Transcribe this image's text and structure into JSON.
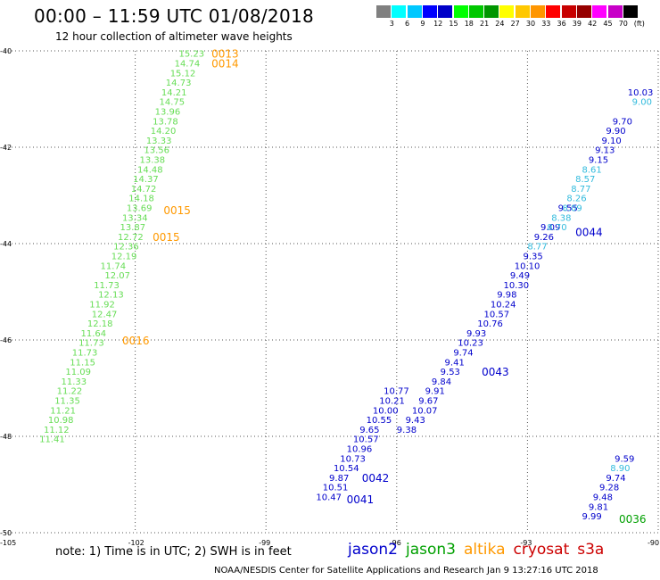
{
  "title": "00:00 – 11:59 UTC 01/08/2018",
  "subtitle": "12 hour collection of altimeter wave heights",
  "legend": {
    "unit": "(ft)",
    "ticks": [
      "3",
      "6",
      "9",
      "12",
      "15",
      "18",
      "21",
      "24",
      "27",
      "30",
      "33",
      "36",
      "39",
      "42",
      "45",
      "70"
    ],
    "colors": [
      "#808080",
      "#00ffff",
      "#00c8ff",
      "#0000ff",
      "#0000c8",
      "#00ff00",
      "#00c800",
      "#009600",
      "#ffff00",
      "#ffc800",
      "#ff9600",
      "#ff0000",
      "#c80000",
      "#960000",
      "#ff00ff",
      "#c800c8",
      "#000000"
    ]
  },
  "note": "note:  1) Time is in UTC;  2) SWH is in feet",
  "satellites": [
    {
      "name": "jason2",
      "color": "#0000cc"
    },
    {
      "name": "jason3",
      "color": "#00a000"
    },
    {
      "name": "altika",
      "color": "#ff9900"
    },
    {
      "name": "cryosat",
      "color": "#cc0000"
    },
    {
      "name": "s3a",
      "color": "#cc0000"
    }
  ],
  "credit": "NOAA/NESDIS Center for Satellite Applications and Research    Jan  9 13:27:16 UTC 2018",
  "chart_data": {
    "type": "scatter",
    "xlim": [
      -105,
      -90
    ],
    "ylim": [
      -50,
      -40
    ],
    "x_ticks": [
      -105,
      -102,
      -99,
      -96,
      -93,
      -90
    ],
    "y_ticks": [
      -40,
      -42,
      -44,
      -46,
      -48,
      -50
    ],
    "grid": true,
    "tracks": [
      {
        "satellite": "jason3",
        "color": "#66dd55",
        "points": [
          {
            "lon": -101.0,
            "lat": -40.05,
            "label": "15.23"
          },
          {
            "lon": -101.1,
            "lat": -40.25,
            "label": "14.74"
          },
          {
            "lon": -101.2,
            "lat": -40.45,
            "label": "15.12"
          },
          {
            "lon": -101.3,
            "lat": -40.65,
            "label": "14.73"
          },
          {
            "lon": -101.4,
            "lat": -40.85,
            "label": "14.21"
          },
          {
            "lon": -101.45,
            "lat": -41.05,
            "label": "14.75"
          },
          {
            "lon": -101.55,
            "lat": -41.25,
            "label": "13.96"
          },
          {
            "lon": -101.6,
            "lat": -41.45,
            "label": "13.78"
          },
          {
            "lon": -101.65,
            "lat": -41.65,
            "label": "14.20"
          },
          {
            "lon": -101.75,
            "lat": -41.85,
            "label": "13.33"
          },
          {
            "lon": -101.8,
            "lat": -42.05,
            "label": "13.56"
          },
          {
            "lon": -101.9,
            "lat": -42.25,
            "label": "13.38"
          },
          {
            "lon": -101.95,
            "lat": -42.45,
            "label": "14.48"
          },
          {
            "lon": -102.05,
            "lat": -42.65,
            "label": "14.37"
          },
          {
            "lon": -102.1,
            "lat": -42.85,
            "label": "14.72"
          },
          {
            "lon": -102.15,
            "lat": -43.05,
            "label": "14.18"
          },
          {
            "lon": -102.2,
            "lat": -43.25,
            "label": "13.69"
          },
          {
            "lon": -102.3,
            "lat": -43.45,
            "label": "13.34"
          },
          {
            "lon": -102.35,
            "lat": -43.65,
            "label": "13.87"
          },
          {
            "lon": -102.4,
            "lat": -43.85,
            "label": "12.72"
          },
          {
            "lon": -102.5,
            "lat": -44.05,
            "label": "12.36"
          },
          {
            "lon": -102.55,
            "lat": -44.25,
            "label": "12.19"
          },
          {
            "lon": -102.8,
            "lat": -44.45,
            "label": "11.74"
          },
          {
            "lon": -102.7,
            "lat": -44.65,
            "label": "12.07"
          },
          {
            "lon": -102.95,
            "lat": -44.85,
            "label": "11.73"
          },
          {
            "lon": -102.85,
            "lat": -45.05,
            "label": "12.13"
          },
          {
            "lon": -103.05,
            "lat": -45.25,
            "label": "11.92"
          },
          {
            "lon": -103.0,
            "lat": -45.45,
            "label": "12.47"
          },
          {
            "lon": -103.1,
            "lat": -45.65,
            "label": "12.18"
          },
          {
            "lon": -103.25,
            "lat": -45.85,
            "label": "11.64"
          },
          {
            "lon": -103.3,
            "lat": -46.05,
            "label": "11.73"
          },
          {
            "lon": -103.45,
            "lat": -46.25,
            "label": "11.73"
          },
          {
            "lon": -103.5,
            "lat": -46.45,
            "label": "11.15"
          },
          {
            "lon": -103.6,
            "lat": -46.65,
            "label": "11.09"
          },
          {
            "lon": -103.7,
            "lat": -46.85,
            "label": "11.33"
          },
          {
            "lon": -103.8,
            "lat": -47.05,
            "label": "11.22"
          },
          {
            "lon": -103.85,
            "lat": -47.25,
            "label": "11.35"
          },
          {
            "lon": -103.95,
            "lat": -47.45,
            "label": "11.21"
          },
          {
            "lon": -104.0,
            "lat": -47.65,
            "label": "10.98"
          },
          {
            "lon": -104.1,
            "lat": -47.85,
            "label": "11.12"
          },
          {
            "lon": -104.2,
            "lat": -48.05,
            "label": "11.41"
          }
        ]
      },
      {
        "satellite": "jason2",
        "color": "#0000cc",
        "points": [
          {
            "lon": -96.3,
            "lat": -47.05,
            "label": "10.77"
          },
          {
            "lon": -96.4,
            "lat": -47.25,
            "label": "10.21"
          },
          {
            "lon": -96.55,
            "lat": -47.45,
            "label": "10.00"
          },
          {
            "lon": -96.7,
            "lat": -47.65,
            "label": "10.55"
          },
          {
            "lon": -96.85,
            "lat": -47.85,
            "label": "9.65"
          },
          {
            "lon": -97.0,
            "lat": -48.05,
            "label": "10.57"
          },
          {
            "lon": -97.15,
            "lat": -48.25,
            "label": "10.96"
          },
          {
            "lon": -97.3,
            "lat": -48.45,
            "label": "10.73"
          },
          {
            "lon": -97.45,
            "lat": -48.65,
            "label": "10.54"
          },
          {
            "lon": -97.55,
            "lat": -48.85,
            "label": "9.87"
          },
          {
            "lon": -97.7,
            "lat": -49.05,
            "label": "10.51"
          },
          {
            "lon": -97.85,
            "lat": -49.25,
            "label": "10.47"
          }
        ]
      },
      {
        "satellite": "jason2",
        "color": "#0000cc",
        "points": [
          {
            "lon": -90.7,
            "lat": -40.85,
            "label": "10.03"
          },
          {
            "lon": -91.05,
            "lat": -41.45,
            "label": "9.70"
          },
          {
            "lon": -91.2,
            "lat": -41.65,
            "label": "9.90"
          },
          {
            "lon": -91.3,
            "lat": -41.85,
            "label": "9.10"
          },
          {
            "lon": -91.45,
            "lat": -42.05,
            "label": "9.13"
          },
          {
            "lon": -91.6,
            "lat": -42.25,
            "label": "9.15"
          },
          {
            "lon": -92.3,
            "lat": -43.25,
            "label": "9.55"
          },
          {
            "lon": -92.7,
            "lat": -43.65,
            "label": "9.09"
          },
          {
            "lon": -92.85,
            "lat": -43.85,
            "label": "9.26"
          },
          {
            "lon": -93.1,
            "lat": -44.25,
            "label": "9.35"
          },
          {
            "lon": -93.3,
            "lat": -44.45,
            "label": "10.10"
          },
          {
            "lon": -93.4,
            "lat": -44.65,
            "label": "9.49"
          },
          {
            "lon": -93.55,
            "lat": -44.85,
            "label": "10.30"
          },
          {
            "lon": -93.7,
            "lat": -45.05,
            "label": "9.98"
          },
          {
            "lon": -93.85,
            "lat": -45.25,
            "label": "10.24"
          },
          {
            "lon": -94.0,
            "lat": -45.45,
            "label": "10.57"
          },
          {
            "lon": -94.15,
            "lat": -45.65,
            "label": "10.76"
          },
          {
            "lon": -94.4,
            "lat": -45.85,
            "label": "9.93"
          },
          {
            "lon": -94.6,
            "lat": -46.05,
            "label": "10.23"
          },
          {
            "lon": -94.7,
            "lat": -46.25,
            "label": "9.74"
          },
          {
            "lon": -94.9,
            "lat": -46.45,
            "label": "9.41"
          },
          {
            "lon": -95.0,
            "lat": -46.65,
            "label": "9.53"
          },
          {
            "lon": -95.2,
            "lat": -46.85,
            "label": "9.84"
          },
          {
            "lon": -95.35,
            "lat": -47.05,
            "label": "9.91"
          },
          {
            "lon": -95.5,
            "lat": -47.25,
            "label": "9.67"
          },
          {
            "lon": -95.65,
            "lat": -47.45,
            "label": "10.07"
          },
          {
            "lon": -95.8,
            "lat": -47.65,
            "label": "9.43"
          },
          {
            "lon": -96.0,
            "lat": -47.85,
            "label": "9.38"
          }
        ]
      },
      {
        "satellite": "jason2",
        "color": "#33bbdd",
        "points": [
          {
            "lon": -90.6,
            "lat": -41.05,
            "label": "9.00"
          },
          {
            "lon": -91.75,
            "lat": -42.45,
            "label": "8.61"
          },
          {
            "lon": -91.9,
            "lat": -42.65,
            "label": "8.57"
          },
          {
            "lon": -92.0,
            "lat": -42.85,
            "label": "8.77"
          },
          {
            "lon": -92.1,
            "lat": -43.05,
            "label": "8.26"
          },
          {
            "lon": -92.2,
            "lat": -43.25,
            "label": "8.09"
          },
          {
            "lon": -92.45,
            "lat": -43.45,
            "label": "8.38"
          },
          {
            "lon": -92.55,
            "lat": -43.65,
            "label": "8.70"
          },
          {
            "lon": -93.0,
            "lat": -44.05,
            "label": "8.77"
          }
        ]
      },
      {
        "satellite": "jason2",
        "color": "#0000cc",
        "points": [
          {
            "lon": -91.0,
            "lat": -48.45,
            "label": "9.59"
          },
          {
            "lon": -91.2,
            "lat": -48.85,
            "label": "9.74"
          },
          {
            "lon": -91.35,
            "lat": -49.05,
            "label": "9.28"
          },
          {
            "lon": -91.5,
            "lat": -49.25,
            "label": "9.48"
          },
          {
            "lon": -91.6,
            "lat": -49.45,
            "label": "9.81"
          },
          {
            "lon": -91.75,
            "lat": -49.65,
            "label": "9.99"
          }
        ]
      },
      {
        "satellite": "jason2",
        "color": "#33bbdd",
        "points": [
          {
            "lon": -91.1,
            "lat": -48.65,
            "label": "8.90"
          }
        ]
      }
    ],
    "pass_labels": [
      {
        "text": "0013",
        "lon": -100.25,
        "lat": -40.05,
        "color": "#ff9900"
      },
      {
        "text": "0014",
        "lon": -100.25,
        "lat": -40.25,
        "color": "#ff9900"
      },
      {
        "text": "0015",
        "lon": -101.35,
        "lat": -43.3,
        "color": "#ff9900"
      },
      {
        "text": "0015",
        "lon": -101.6,
        "lat": -43.85,
        "color": "#ff9900"
      },
      {
        "text": "0016",
        "lon": -102.3,
        "lat": -46.0,
        "color": "#ff9900"
      },
      {
        "text": "0044",
        "lon": -91.9,
        "lat": -43.75,
        "color": "#0000cc"
      },
      {
        "text": "0043",
        "lon": -94.05,
        "lat": -46.65,
        "color": "#0000cc"
      },
      {
        "text": "0042",
        "lon": -96.8,
        "lat": -48.85,
        "color": "#0000cc"
      },
      {
        "text": "0041",
        "lon": -97.15,
        "lat": -49.3,
        "color": "#0000cc"
      },
      {
        "text": "0036",
        "lon": -90.9,
        "lat": -49.7,
        "color": "#00a000"
      }
    ]
  }
}
